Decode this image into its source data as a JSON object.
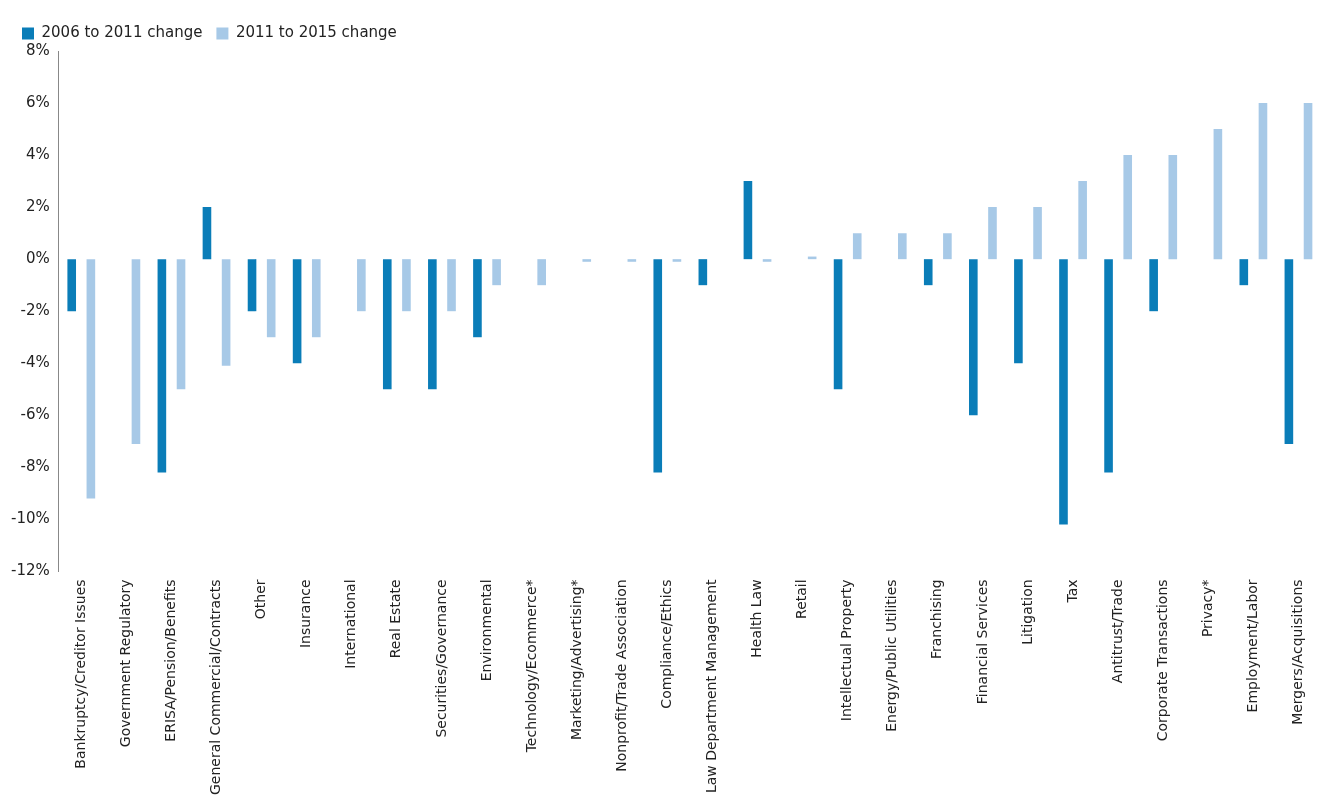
{
  "chart_data": {
    "type": "bar",
    "categories": [
      "Bankruptcy/Creditor Issues",
      "Government Regulatory",
      "ERISA/Pension/Benefits",
      "General Commercial/Contracts",
      "Other",
      "Insurance",
      "International",
      "Real Estate",
      "Securities/Governance",
      "Environmental",
      "Technology/Ecommerce*",
      "Marketing/Advertising*",
      "Nonprofit/Trade Association",
      "Compliance/Ethics",
      "Law Department Management",
      "Health Law",
      "Retail",
      "Intellectual Property",
      "Energy/Public Utilities",
      "Franchising",
      "Financial Services",
      "Litigation",
      "Tax",
      "Antitrust/Trade",
      "Corporate Transactions",
      "Privacy*",
      "Employment/Labor",
      "Mergers/Acquisitions"
    ],
    "series": [
      {
        "name": "2006 to 2011 change",
        "color": "#0a7db8",
        "values": [
          -2,
          null,
          -8.2,
          2,
          -2,
          -4,
          null,
          -5,
          -5,
          -3,
          null,
          null,
          null,
          -8.2,
          -1,
          3,
          null,
          -5,
          null,
          -1,
          -6,
          -4,
          -10.2,
          -8.2,
          -2,
          null,
          -1,
          -7.1
        ]
      },
      {
        "name": "2011 to 2015 change",
        "color": "#a7c9e7",
        "values": [
          -9.2,
          -7.1,
          -5,
          -4.1,
          -3,
          -3,
          -2,
          -2,
          -2,
          -1,
          -1,
          -0.1,
          -0.1,
          -0.1,
          null,
          -0.1,
          0.1,
          1,
          1,
          1,
          2,
          2,
          3,
          4,
          4,
          5,
          6,
          6
        ]
      }
    ],
    "ylim": [
      -12,
      8
    ],
    "yticks": [
      {
        "value": -12,
        "label": "-12%"
      },
      {
        "value": -10,
        "label": "-10%"
      },
      {
        "value": -8,
        "label": "-8%"
      },
      {
        "value": -6,
        "label": "-6%"
      },
      {
        "value": -4,
        "label": "-4%"
      },
      {
        "value": -2,
        "label": "-2%"
      },
      {
        "value": 0,
        "label": "0%"
      },
      {
        "value": 2,
        "label": "2%"
      },
      {
        "value": 4,
        "label": "4%"
      },
      {
        "value": 6,
        "label": "6%"
      },
      {
        "value": 8,
        "label": "8%"
      }
    ],
    "grid": false,
    "legend": "top left"
  }
}
